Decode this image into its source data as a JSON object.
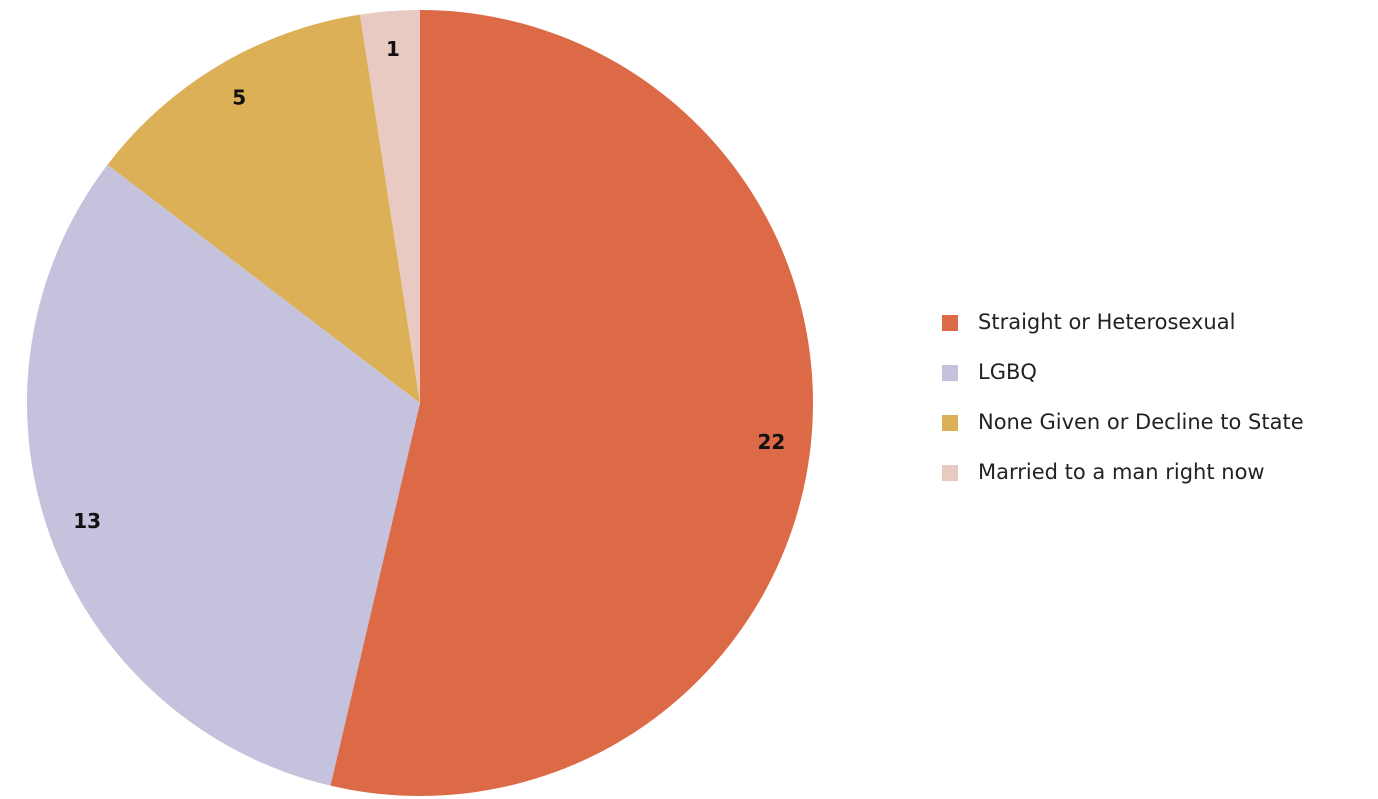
{
  "chart_data": {
    "type": "pie",
    "categories": [
      "Straight or Heterosexual",
      "LGBQ",
      "None Given or Decline to State",
      "Married to a man right now"
    ],
    "values": [
      22,
      13,
      5,
      1
    ],
    "colors": [
      "#dd6a47",
      "#c4c2dc",
      "#dcb056",
      "#e8cac3"
    ],
    "legend": "right"
  }
}
